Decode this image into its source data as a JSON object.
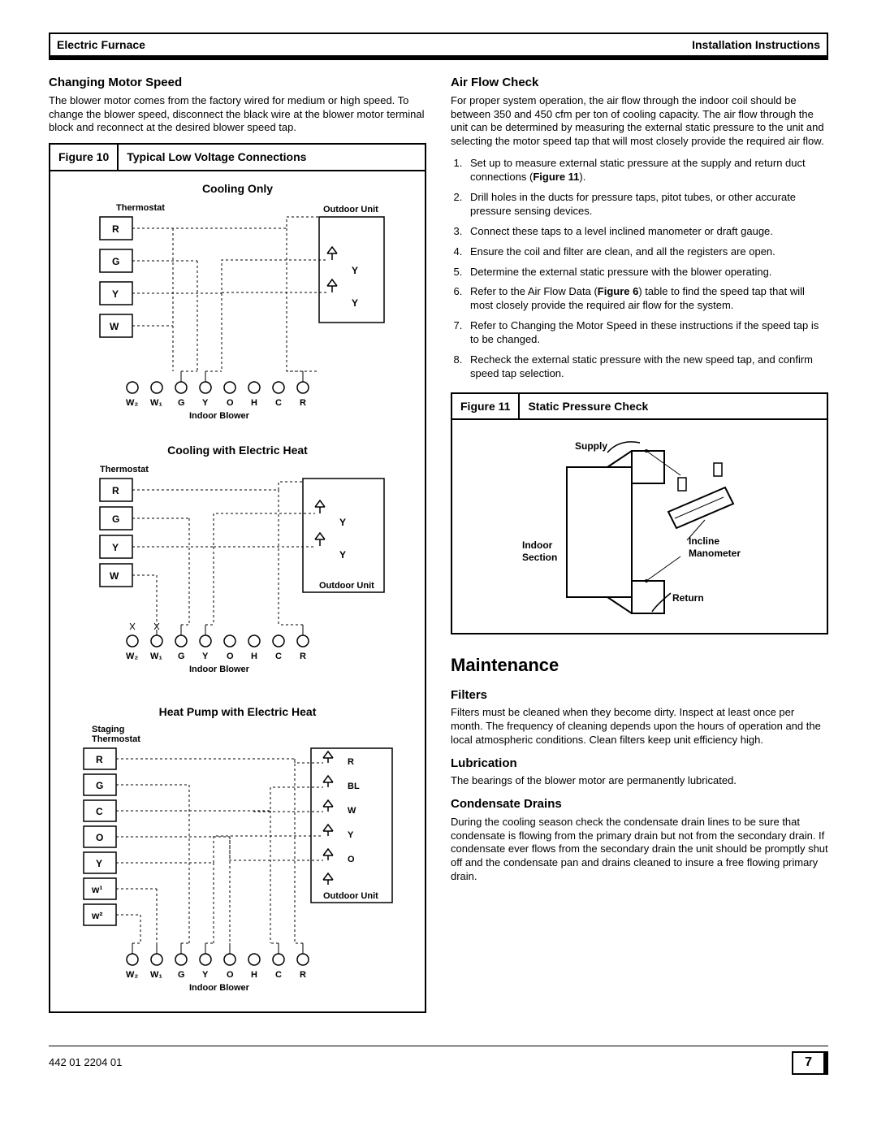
{
  "header": {
    "left": "Electric Furnace",
    "right": "Installation Instructions"
  },
  "left_column": {
    "section1_title": "Changing Motor Speed",
    "section1_body": "The blower motor comes from the factory wired for medium or high speed. To change the blower speed, disconnect the black wire at the blower motor terminal block and reconnect at the desired blower speed tap.",
    "figure10": {
      "num": "Figure 10",
      "title": "Typical Low Voltage Connections"
    },
    "diagram1": {
      "title": "Cooling Only",
      "thermostat": "Thermostat",
      "outdoor": "Outdoor Unit",
      "indoor": "Indoor Blower",
      "rows": [
        "R",
        "G",
        "Y",
        "W"
      ],
      "terminals": [
        "W₂",
        "W₁",
        "G",
        "Y",
        "O",
        "H",
        "C",
        "R"
      ],
      "outs": [
        "Y",
        "Y"
      ]
    },
    "diagram2": {
      "title": "Cooling with Electric Heat",
      "thermostat": "Thermostat",
      "outdoor": "Outdoor Unit",
      "indoor": "Indoor Blower",
      "rows": [
        "R",
        "G",
        "Y",
        "W"
      ],
      "terminals": [
        "W₂",
        "W₁",
        "G",
        "Y",
        "O",
        "H",
        "C",
        "R"
      ],
      "outs": [
        "Y",
        "Y"
      ]
    },
    "diagram3": {
      "title": "Heat Pump with Electric Heat",
      "thermostat_label": "Staging\nThermostat",
      "outdoor": "Outdoor Unit",
      "indoor": "Indoor Blower",
      "rows": [
        "R",
        "G",
        "C",
        "O",
        "Y",
        "w¹",
        "w²"
      ],
      "terminals": [
        "W₂",
        "W₁",
        "G",
        "Y",
        "O",
        "H",
        "C",
        "R"
      ],
      "outs": [
        "R",
        "BL",
        "W",
        "Y",
        "O"
      ]
    }
  },
  "right_column": {
    "section2_title": "Air Flow Check",
    "section2_body": "For proper system operation, the air flow through the indoor coil should be between 350 and 450 cfm per ton of cooling capacity. The air flow through the unit can be determined by measuring the external static pressure to the unit and selecting the motor speed tap that will most closely provide the required air flow.",
    "steps": [
      "Set up to measure external static pressure at the supply and return duct connections (<strong>Figure 11</strong>).",
      "Drill holes in the ducts for pressure taps, pitot tubes, or other accurate pressure sensing devices.",
      "Connect these taps to a level inclined manometer or draft gauge.",
      "Ensure the coil and filter are clean, and all the registers are open.",
      "Determine the external static pressure with the blower operating.",
      "Refer to the Air Flow Data (<strong>Figure 6</strong>) table to find the speed tap that will most closely provide the required air flow for the system.",
      "Refer to Changing the Motor Speed in these instructions if the speed tap is to be changed.",
      "Recheck the external static pressure with the new speed tap, and confirm speed tap selection."
    ],
    "figure11": {
      "num": "Figure 11",
      "title": "Static Pressure Check",
      "supply": "Supply",
      "indoor_section": "Indoor\nSection",
      "incline": "Incline\nManometer",
      "return": "Return"
    },
    "maintenance_heading": "Maintenance",
    "filters_title": "Filters",
    "filters_body": "Filters must be cleaned when they become dirty. Inspect at least once per month. The frequency of cleaning depends upon the hours of operation and the local atmospheric conditions. Clean filters keep unit efficiency high.",
    "lubrication_title": "Lubrication",
    "lubrication_body": "The bearings of the blower motor are permanently lubricated.",
    "condensate_title": "Condensate Drains",
    "condensate_body": "During the cooling season check the condensate drain lines to be sure that condensate is flowing from the primary drain but not from the secondary drain. If condensate ever flows from the secondary drain the unit should be promptly shut off and the condensate pan and drains cleaned to insure a free flowing primary drain."
  },
  "footer": {
    "doc_num": "442 01 2204 01",
    "page": "7"
  },
  "colors": {
    "line": "#000000",
    "bg": "#ffffff"
  }
}
